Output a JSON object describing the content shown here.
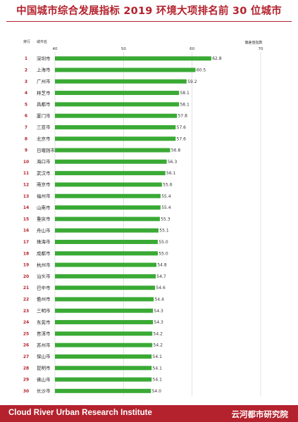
{
  "header": {
    "title": "中国城市综合发展指标 2019 环境大项排名前 30 位城市"
  },
  "footer": {
    "left": "Cloud River Urban Research Institute",
    "right": "云河都市研究院"
  },
  "colors": {
    "accent": "#b3222d",
    "bar": "#3aaa35",
    "grid": "#cfcfcf"
  },
  "chart_data": {
    "type": "bar",
    "orientation": "horizontal",
    "columns": {
      "rank": "排行",
      "city": "城市名",
      "value": "偏差值指数"
    },
    "categories": [
      "深圳市",
      "上海市",
      "广州市",
      "林芝市",
      "昌都市",
      "厦门市",
      "三亚市",
      "北京市",
      "日喀则市",
      "海口市",
      "武汉市",
      "南京市",
      "福州市",
      "山南市",
      "重庆市",
      "舟山市",
      "珠海市",
      "成都市",
      "杭州市",
      "汕头市",
      "巴中市",
      "儋州市",
      "三明市",
      "东莞市",
      "普洱市",
      "苏州市",
      "保山市",
      "昆明市",
      "佛山市",
      "长沙市"
    ],
    "ranks": [
      "1",
      "2",
      "3",
      "4",
      "5",
      "6",
      "7",
      "8",
      "9",
      "10",
      "11",
      "12",
      "13",
      "14",
      "15",
      "16",
      "17",
      "18",
      "19",
      "20",
      "21",
      "22",
      "23",
      "24",
      "25",
      "26",
      "27",
      "28",
      "29",
      "30"
    ],
    "values": [
      62.8,
      60.5,
      59.2,
      58.1,
      58.1,
      57.8,
      57.6,
      57.6,
      56.8,
      56.3,
      56.1,
      55.6,
      55.4,
      55.4,
      55.3,
      55.1,
      55.0,
      55.0,
      54.8,
      54.7,
      54.6,
      54.4,
      54.3,
      54.3,
      54.2,
      54.2,
      54.1,
      54.1,
      54.1,
      54.0
    ],
    "value_labels": [
      "62.8",
      "60.5",
      "59.2",
      "58.1",
      "58.1",
      "57.8",
      "57.6",
      "57.6",
      "56.8",
      "56.3",
      "56.1",
      "55.6",
      "55.4",
      "55.4",
      "55.3",
      "55.1",
      "55.0",
      "55.0",
      "54.8",
      "54.7",
      "54.6",
      "54.4",
      "54.3",
      "54.3",
      "54.2",
      "54.2",
      "54.1",
      "54.1",
      "54.1",
      "54.0"
    ],
    "ticks": [
      "40",
      "50",
      "60",
      "70"
    ],
    "xlim": [
      40,
      70
    ],
    "grid": true
  }
}
